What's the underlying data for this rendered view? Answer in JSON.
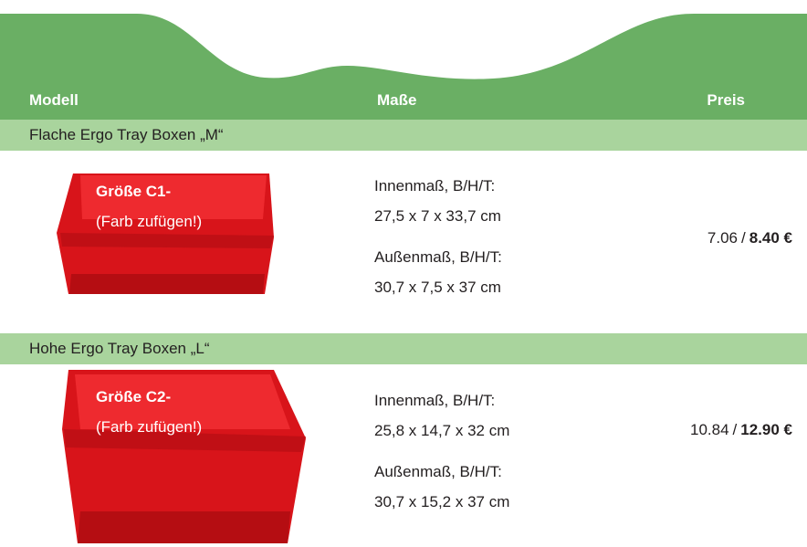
{
  "header": {
    "columns": [
      "Modell",
      "Maße",
      "Preis"
    ]
  },
  "sections": [
    {
      "title": "Flache Ergo Tray Boxen „M“",
      "product": {
        "image_label": "Größe C1-",
        "image_note": "(Farb zufügen!)",
        "inner_label": "Innenmaß, B/H/T:",
        "inner": "27,5 x 7 x 33,7 cm",
        "outer_label": "Außenmaß, B/H/T:",
        "outer": "30,7 x 7,5 x 37 cm",
        "price_net": "7.06",
        "price_separator": "/",
        "price_gross": "8.40 €"
      }
    },
    {
      "title": "Hohe Ergo Tray Boxen „L“",
      "product": {
        "image_label": "Größe C2-",
        "image_note": "(Farb zufügen!)",
        "inner_label": "Innenmaß, B/H/T:",
        "inner": "25,8 x 14,7 x 32 cm",
        "outer_label": "Außenmaß, B/H/T:",
        "outer": "30,7 x 15,2 x 37 cm",
        "price_net": "10.84",
        "price_separator": "/",
        "price_gross": "12.90 €"
      }
    }
  ]
}
